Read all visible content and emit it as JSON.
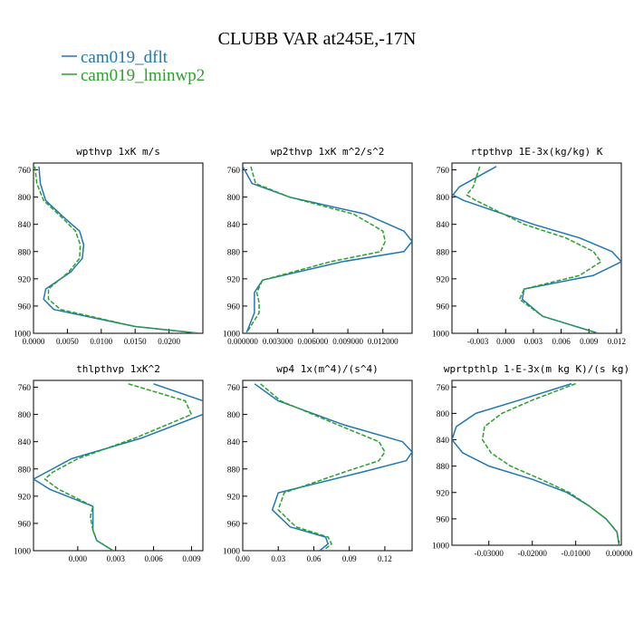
{
  "title": "CLUBB VAR at245E,-17N",
  "legend": [
    {
      "label": "cam019_dflt",
      "color": "#1f77b4",
      "dash": "solid"
    },
    {
      "label": "cam019_lminwp2",
      "color": "#2ca02c",
      "dash": "dashed"
    }
  ],
  "chart_data": [
    {
      "type": "line",
      "title": "wpthvp  1xK m/s",
      "xlim": [
        0.0,
        0.025
      ],
      "ylim": [
        1000,
        750
      ],
      "xticks": [
        0.0,
        0.005,
        0.01,
        0.015,
        0.02
      ],
      "xticklabels": [
        "0.0000",
        "0.0050",
        "0.0100",
        "0.0150",
        "0.0200"
      ],
      "yticks": [
        760,
        800,
        840,
        880,
        920,
        960,
        1000
      ],
      "yticklabels": [
        "760",
        "800",
        "840",
        "880",
        "920",
        "960",
        "1000"
      ],
      "series": [
        {
          "name": "cam019_dflt",
          "x": [
            0.0008,
            0.001,
            0.0018,
            0.0045,
            0.0068,
            0.0074,
            0.0072,
            0.0055,
            0.0018,
            0.0015,
            0.003,
            0.015,
            0.0245
          ],
          "y": [
            755,
            780,
            805,
            830,
            850,
            870,
            890,
            910,
            935,
            950,
            965,
            990,
            1000
          ]
        },
        {
          "name": "cam019_lminwp2",
          "x": [
            0.0002,
            0.0005,
            0.0015,
            0.0042,
            0.0062,
            0.0069,
            0.0068,
            0.0052,
            0.0022,
            0.0022,
            0.004,
            0.015,
            0.0245
          ],
          "y": [
            755,
            780,
            805,
            830,
            850,
            870,
            890,
            910,
            935,
            950,
            965,
            990,
            1000
          ]
        }
      ]
    },
    {
      "type": "line",
      "title": "wp2thvp  1xK m^2/s^2",
      "xlim": [
        0.0,
        0.0145
      ],
      "ylim": [
        1000,
        750
      ],
      "xticks": [
        0.0,
        0.003,
        0.006,
        0.009,
        0.012
      ],
      "xticklabels": [
        "0.000000",
        "0.003000",
        "0.006000",
        "0.009000",
        "0.012000"
      ],
      "yticks": [
        760,
        800,
        840,
        880,
        920,
        960,
        1000
      ],
      "yticklabels": [
        "760",
        "800",
        "840",
        "880",
        "920",
        "960",
        "1000"
      ],
      "series": [
        {
          "name": "cam019_dflt",
          "x": [
            0.0,
            0.0008,
            0.004,
            0.0105,
            0.0138,
            0.0145,
            0.0138,
            0.0085,
            0.0017,
            0.001,
            0.001,
            0.001,
            0.0003
          ],
          "y": [
            755,
            780,
            800,
            825,
            850,
            865,
            880,
            895,
            922,
            940,
            955,
            970,
            1000
          ]
        },
        {
          "name": "cam019_lminwp2",
          "x": [
            0.0007,
            0.0011,
            0.004,
            0.0095,
            0.012,
            0.0122,
            0.0118,
            0.0075,
            0.0017,
            0.0012,
            0.0014,
            0.0014,
            0.0003
          ],
          "y": [
            755,
            780,
            800,
            825,
            850,
            865,
            880,
            895,
            922,
            940,
            955,
            970,
            1000
          ]
        }
      ]
    },
    {
      "type": "line",
      "title": "rtpthvp  1E-3x(kg/kg) K",
      "xlim": [
        -0.0058,
        0.0125
      ],
      "ylim": [
        1000,
        750
      ],
      "xticks": [
        -0.003,
        0.0,
        0.003,
        0.006,
        0.009,
        0.012
      ],
      "xticklabels": [
        "-0.003",
        "0.000",
        "0.003",
        "0.006",
        "0.009",
        "0.012"
      ],
      "yticks": [
        760,
        800,
        840,
        880,
        920,
        960,
        1000
      ],
      "yticklabels": [
        "760",
        "800",
        "840",
        "880",
        "920",
        "960",
        "1000"
      ],
      "series": [
        {
          "name": "cam019_dflt",
          "x": [
            -0.001,
            -0.005,
            -0.0057,
            -0.0045,
            0.003,
            0.008,
            0.0115,
            0.0125,
            0.0095,
            0.002,
            0.0018,
            0.004,
            0.01
          ],
          "y": [
            755,
            785,
            797,
            805,
            840,
            860,
            880,
            895,
            915,
            935,
            950,
            975,
            1000
          ]
        },
        {
          "name": "cam019_lminwp2",
          "x": [
            -0.0028,
            -0.0035,
            -0.0042,
            -0.0032,
            0.002,
            0.0065,
            0.0095,
            0.0103,
            0.008,
            0.002,
            0.0015,
            0.004,
            0.01
          ],
          "y": [
            755,
            785,
            797,
            805,
            840,
            860,
            880,
            895,
            915,
            935,
            950,
            975,
            1000
          ]
        }
      ]
    },
    {
      "type": "line",
      "title": "thlpthvp  1xK^2",
      "xlim": [
        -0.0035,
        0.0099
      ],
      "ylim": [
        1000,
        750
      ],
      "xticks": [
        0.0,
        0.003,
        0.006,
        0.009
      ],
      "xticklabels": [
        "0.000",
        "0.003",
        "0.006",
        "0.009"
      ],
      "yticks": [
        760,
        800,
        840,
        880,
        920,
        960,
        1000
      ],
      "yticklabels": [
        "760",
        "800",
        "840",
        "880",
        "920",
        "960",
        "1000"
      ],
      "series": [
        {
          "name": "cam019_dflt",
          "x": [
            0.006,
            0.0099,
            0.0099,
            0.005,
            -0.0005,
            -0.0025,
            -0.0035,
            -0.0022,
            0.0012,
            0.0012,
            0.0012,
            0.0015,
            0.0028
          ],
          "y": [
            755,
            780,
            800,
            835,
            865,
            885,
            895,
            910,
            935,
            950,
            970,
            985,
            1000
          ]
        },
        {
          "name": "cam019_lminwp2",
          "x": [
            0.004,
            0.0085,
            0.009,
            0.0045,
            0.0,
            -0.002,
            -0.0026,
            -0.0015,
            0.0012,
            0.001,
            0.0012,
            0.0015,
            0.0028
          ],
          "y": [
            755,
            780,
            800,
            835,
            865,
            885,
            895,
            910,
            935,
            950,
            970,
            985,
            1000
          ]
        }
      ]
    },
    {
      "type": "line",
      "title": "wp4  1x(m^4)/(s^4)",
      "xlim": [
        0.0,
        0.143
      ],
      "ylim": [
        1000,
        750
      ],
      "xticks": [
        0.0,
        0.03,
        0.06,
        0.09,
        0.12
      ],
      "xticklabels": [
        "0.00",
        "0.03",
        "0.06",
        "0.09",
        "0.12"
      ],
      "yticks": [
        760,
        800,
        840,
        880,
        920,
        960,
        1000
      ],
      "yticklabels": [
        "760",
        "800",
        "840",
        "880",
        "920",
        "960",
        "1000"
      ],
      "series": [
        {
          "name": "cam019_dflt",
          "x": [
            0.01,
            0.03,
            0.085,
            0.135,
            0.143,
            0.138,
            0.1,
            0.03,
            0.025,
            0.04,
            0.07,
            0.072,
            0.065
          ],
          "y": [
            755,
            780,
            815,
            840,
            855,
            868,
            885,
            915,
            940,
            965,
            980,
            990,
            1000
          ]
        },
        {
          "name": "cam019_lminwp2",
          "x": [
            0.015,
            0.032,
            0.08,
            0.115,
            0.12,
            0.115,
            0.085,
            0.035,
            0.03,
            0.045,
            0.072,
            0.075,
            0.068
          ],
          "y": [
            755,
            780,
            815,
            840,
            855,
            868,
            885,
            915,
            940,
            965,
            980,
            990,
            1000
          ]
        }
      ]
    },
    {
      "type": "line",
      "title": "wprtpthlp  1-E-3x(m kg K)/(s kg)",
      "xlim": [
        -0.0385,
        0.0005
      ],
      "ylim": [
        1000,
        750
      ],
      "xticks": [
        -0.03,
        -0.02,
        -0.01,
        0.0
      ],
      "xticklabels": [
        "-0.03000",
        "-0.02000",
        "-0.01000",
        "0.00000"
      ],
      "yticks": [
        760,
        800,
        840,
        880,
        920,
        960,
        1000
      ],
      "yticklabels": [
        "760",
        "800",
        "840",
        "880",
        "920",
        "960",
        "1000"
      ],
      "series": [
        {
          "name": "cam019_dflt",
          "x": [
            -0.011,
            -0.023,
            -0.033,
            -0.0375,
            -0.0385,
            -0.036,
            -0.03,
            -0.02,
            -0.012,
            -0.007,
            -0.003,
            -0.0005,
            0.0
          ],
          "y": [
            755,
            780,
            800,
            820,
            840,
            860,
            880,
            900,
            920,
            940,
            960,
            980,
            1000
          ]
        },
        {
          "name": "cam019_lminwp2",
          "x": [
            -0.01,
            -0.02,
            -0.027,
            -0.031,
            -0.0315,
            -0.0295,
            -0.025,
            -0.018,
            -0.0115,
            -0.007,
            -0.003,
            -0.0005,
            0.0
          ],
          "y": [
            755,
            780,
            800,
            820,
            840,
            860,
            880,
            900,
            920,
            940,
            960,
            980,
            1000
          ]
        }
      ]
    }
  ]
}
